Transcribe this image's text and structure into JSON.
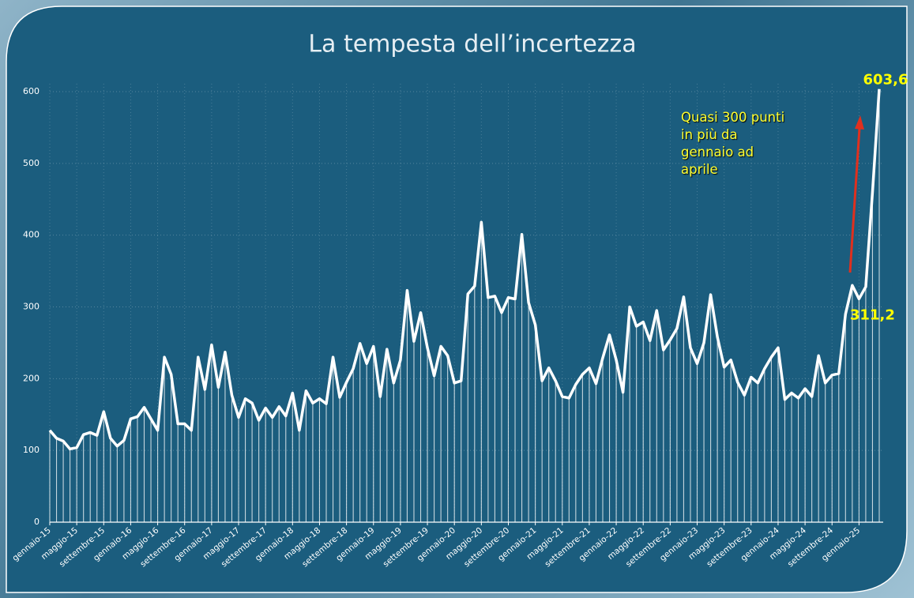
{
  "chart_data": {
    "type": "line",
    "title": "La tempesta dell’incertezza",
    "annotation": "Quasi 300 punti\nin più da\ngennaio ad\naprile",
    "categories": [
      "gennaio-15",
      null,
      null,
      null,
      "maggio-15",
      null,
      null,
      null,
      "settembre-15",
      null,
      null,
      null,
      "gennaio-16",
      null,
      null,
      null,
      "maggio-16",
      null,
      null,
      null,
      "settembre-16",
      null,
      null,
      null,
      "gennaio-17",
      null,
      null,
      null,
      "maggio-17",
      null,
      null,
      null,
      "settembre-17",
      null,
      null,
      null,
      "gennaio-18",
      null,
      null,
      null,
      "maggio-18",
      null,
      null,
      null,
      "settembre-18",
      null,
      null,
      null,
      "gennaio-19",
      null,
      null,
      null,
      "maggio-19",
      null,
      null,
      null,
      "settembre-19",
      null,
      null,
      null,
      "gennaio-20",
      null,
      null,
      null,
      "maggio-20",
      null,
      null,
      null,
      "settembre-20",
      null,
      null,
      null,
      "gennaio-21",
      null,
      null,
      null,
      "maggio-21",
      null,
      null,
      null,
      "settembre-21",
      null,
      null,
      null,
      "gennaio-22",
      null,
      null,
      null,
      "maggio-22",
      null,
      null,
      null,
      "settembre-22",
      null,
      null,
      null,
      "gennaio-23",
      null,
      null,
      null,
      "maggio-23",
      null,
      null,
      null,
      "settembre-23",
      null,
      null,
      null,
      "gennaio-24",
      null,
      null,
      null,
      "maggio-24",
      null,
      null,
      null,
      "settembre-24",
      null,
      null,
      null,
      "gennaio-25",
      null,
      null,
      null
    ],
    "values": [
      128,
      117,
      113,
      102,
      104,
      122,
      125,
      121,
      154,
      117,
      106,
      114,
      144,
      147,
      160,
      144,
      128,
      230,
      206,
      137,
      137,
      128,
      230,
      185,
      247,
      188,
      237,
      177,
      146,
      172,
      166,
      142,
      159,
      146,
      161,
      148,
      180,
      128,
      183,
      166,
      172,
      165,
      230,
      174,
      195,
      214,
      249,
      221,
      245,
      175,
      241,
      194,
      226,
      323,
      252,
      292,
      243,
      204,
      245,
      232,
      194,
      197,
      318,
      329,
      418,
      313,
      315,
      292,
      313,
      311,
      401,
      306,
      275,
      197,
      215,
      197,
      175,
      173,
      192,
      206,
      215,
      193,
      229,
      261,
      226,
      181,
      300,
      273,
      279,
      253,
      295,
      240,
      254,
      270,
      314,
      243,
      221,
      250,
      317,
      258,
      216,
      226,
      195,
      177,
      202,
      194,
      214,
      230,
      243,
      171,
      180,
      173,
      186,
      175,
      232,
      194,
      205,
      207,
      290,
      330,
      311.2,
      328,
      460,
      603.6
    ],
    "value_labels": [
      null,
      null,
      null,
      null,
      null,
      null,
      null,
      null,
      null,
      null,
      null,
      null,
      null,
      null,
      null,
      null,
      null,
      null,
      null,
      null,
      null,
      null,
      null,
      null,
      null,
      null,
      null,
      null,
      null,
      null,
      null,
      null,
      null,
      null,
      null,
      null,
      null,
      null,
      null,
      null,
      null,
      null,
      null,
      null,
      null,
      null,
      null,
      null,
      null,
      null,
      null,
      null,
      null,
      null,
      null,
      null,
      null,
      null,
      null,
      null,
      null,
      null,
      null,
      null,
      null,
      null,
      null,
      null,
      null,
      null,
      null,
      null,
      null,
      null,
      null,
      null,
      null,
      null,
      null,
      null,
      null,
      null,
      null,
      null,
      null,
      null,
      null,
      null,
      null,
      null,
      null,
      null,
      null,
      null,
      null,
      null,
      null,
      null,
      null,
      null,
      null,
      null,
      null,
      null,
      null,
      null,
      null,
      null,
      null,
      null,
      null,
      null,
      null,
      null,
      null,
      null,
      null,
      null,
      null,
      null,
      "311,2",
      null,
      null,
      "603,6"
    ],
    "color": "#ffffff",
    "label_color": "#ffff00",
    "ylim": [
      0,
      600
    ],
    "yticks": [
      0,
      100,
      200,
      300,
      400,
      500,
      600
    ],
    "grid": true
  }
}
